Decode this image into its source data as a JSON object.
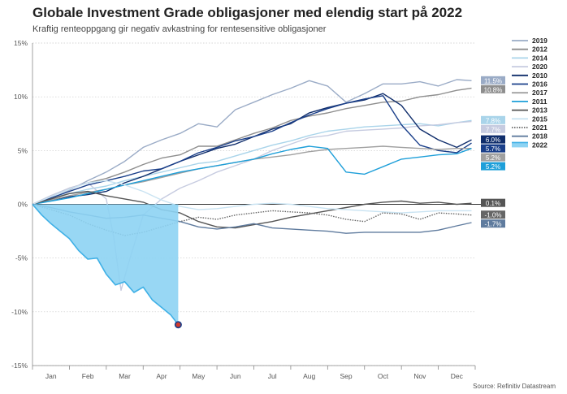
{
  "title": "Globale Investment Grade obligasjoner med elendig start på 2022",
  "subtitle": "Kraftig renteoppgang gir negativ avkastning for rentesensitive obligasjoner",
  "source": "Source: Refinitiv Datastream",
  "chart_data": {
    "type": "line",
    "ylim": [
      -15,
      15
    ],
    "y_ticks": [
      15,
      10,
      5,
      0,
      -5,
      -10,
      -15
    ],
    "y_tick_labels": [
      "15%",
      "10%",
      "5%",
      "0%",
      "-5%",
      "-10%",
      "-15%"
    ],
    "x_range": [
      0,
      12
    ],
    "x_tick_labels": [
      "Jan",
      "Feb",
      "Mar",
      "Apr",
      "May",
      "Jun",
      "Jul",
      "Aug",
      "Sep",
      "Oct",
      "Nov",
      "Dec"
    ],
    "grid": true,
    "legend_position": "right",
    "series": [
      {
        "name": "2019",
        "color": "#9aabc6",
        "end_label": "11.5%",
        "x": [
          0,
          0.5,
          1,
          1.5,
          2,
          2.5,
          3,
          3.5,
          4,
          4.5,
          5,
          5.5,
          6,
          6.5,
          7,
          7.5,
          8,
          8.5,
          9,
          9.5,
          10,
          10.5,
          11,
          11.5,
          11.9
        ],
        "y": [
          0,
          0.5,
          1.3,
          2.2,
          3.0,
          4.0,
          5.3,
          6.0,
          6.6,
          7.5,
          7.2,
          8.8,
          9.5,
          10.2,
          10.8,
          11.5,
          11.0,
          9.5,
          10.3,
          11.2,
          11.2,
          11.4,
          11.0,
          11.6,
          11.5
        ]
      },
      {
        "name": "2012",
        "color": "#8e8e8e",
        "end_label": "10.8%",
        "x": [
          0,
          0.5,
          1,
          1.5,
          2,
          2.5,
          3,
          3.5,
          4,
          4.5,
          5,
          5.5,
          6,
          6.5,
          7,
          7.5,
          8,
          8.5,
          9,
          9.5,
          10,
          10.5,
          11,
          11.5,
          11.9
        ],
        "y": [
          0,
          0.8,
          1.5,
          2.0,
          2.4,
          3.0,
          3.7,
          4.3,
          4.6,
          5.4,
          5.4,
          6.0,
          6.6,
          7.1,
          7.8,
          8.2,
          8.5,
          8.9,
          9.2,
          9.5,
          9.6,
          10.0,
          10.2,
          10.6,
          10.8
        ]
      },
      {
        "name": "2014",
        "color": "#a9d4ea",
        "end_label": "7.8%",
        "x": [
          0,
          0.5,
          1,
          1.5,
          2,
          2.5,
          3,
          3.5,
          4,
          4.5,
          5,
          5.5,
          6,
          6.5,
          7,
          7.5,
          8,
          8.5,
          9,
          9.5,
          10,
          10.5,
          11,
          11.5,
          11.9
        ],
        "y": [
          0,
          0.6,
          1.0,
          1.4,
          1.7,
          2.2,
          2.6,
          3.0,
          3.4,
          3.8,
          4.0,
          4.5,
          5.0,
          5.5,
          5.9,
          6.4,
          6.8,
          7.0,
          7.2,
          7.3,
          7.4,
          7.5,
          7.3,
          7.6,
          7.8
        ]
      },
      {
        "name": "2020",
        "color": "#c6cbe0",
        "end_label": "7.7%",
        "x": [
          0,
          0.5,
          1,
          1.5,
          2,
          2.2,
          2.4,
          2.6,
          3,
          3.5,
          4,
          4.5,
          5,
          5.5,
          6,
          6.5,
          7,
          7.5,
          8,
          8.5,
          9,
          9.5,
          10,
          10.5,
          11,
          11.5,
          11.9
        ],
        "y": [
          0,
          0.8,
          1.5,
          2.0,
          0.5,
          -3.0,
          -8.0,
          -5.5,
          -1.0,
          0.5,
          1.5,
          2.2,
          3.0,
          3.6,
          4.2,
          5.0,
          5.6,
          6.2,
          6.4,
          6.8,
          6.9,
          7.0,
          7.1,
          7.3,
          7.4,
          7.6,
          7.7
        ]
      },
      {
        "name": "2010",
        "color": "#0f2d6b",
        "end_label": "6.0%",
        "x": [
          0,
          0.5,
          1,
          1.5,
          2,
          2.5,
          3,
          3.5,
          4,
          4.5,
          5,
          5.5,
          6,
          6.5,
          7,
          7.5,
          8,
          8.5,
          9,
          9.5,
          10,
          10.5,
          11,
          11.5,
          11.9
        ],
        "y": [
          0,
          0.4,
          0.7,
          0.9,
          1.2,
          2.0,
          2.6,
          3.3,
          4.0,
          4.6,
          5.2,
          5.6,
          6.3,
          7.0,
          7.5,
          8.5,
          9.0,
          9.4,
          9.7,
          10.3,
          9.2,
          7.0,
          6.0,
          5.3,
          6.0
        ]
      },
      {
        "name": "2016",
        "color": "#1a3f8a",
        "end_label": "5.7%",
        "x": [
          0,
          0.5,
          1,
          1.5,
          2,
          2.5,
          3,
          3.5,
          4,
          4.5,
          5,
          5.5,
          6,
          6.5,
          7,
          7.5,
          8,
          8.5,
          9,
          9.5,
          10,
          10.5,
          11,
          11.5,
          11.9
        ],
        "y": [
          0,
          0.6,
          1.2,
          1.8,
          2.2,
          2.6,
          3.1,
          3.3,
          4.0,
          4.8,
          5.3,
          5.9,
          6.3,
          6.8,
          7.6,
          8.3,
          8.9,
          9.4,
          9.8,
          10.1,
          7.4,
          5.5,
          5.0,
          4.8,
          5.7
        ]
      },
      {
        "name": "2017",
        "color": "#a0a0a0",
        "end_label": "5.2%",
        "x": [
          0,
          0.5,
          1,
          1.5,
          2,
          2.5,
          3,
          3.5,
          4,
          4.5,
          5,
          5.5,
          6,
          6.5,
          7,
          7.5,
          8,
          8.5,
          9,
          9.5,
          10,
          10.5,
          11,
          11.5,
          11.9
        ],
        "y": [
          0,
          0.4,
          0.8,
          1.1,
          1.4,
          1.8,
          2.1,
          2.5,
          2.9,
          3.3,
          3.6,
          3.9,
          4.2,
          4.4,
          4.6,
          4.9,
          5.1,
          5.2,
          5.3,
          5.4,
          5.3,
          5.2,
          5.1,
          5.2,
          5.2
        ]
      },
      {
        "name": "2011",
        "color": "#1e9fd9",
        "end_label": "5.2%",
        "x": [
          0,
          0.5,
          1,
          1.5,
          2,
          2.5,
          3,
          3.5,
          4,
          4.5,
          5,
          5.5,
          6,
          6.5,
          7,
          7.5,
          8,
          8.5,
          9,
          9.5,
          10,
          10.5,
          11,
          11.5,
          11.9
        ],
        "y": [
          0,
          0.3,
          0.6,
          1.0,
          1.4,
          1.8,
          2.2,
          2.6,
          3.0,
          3.3,
          3.6,
          3.9,
          4.2,
          4.7,
          5.1,
          5.4,
          5.2,
          3.0,
          2.8,
          3.5,
          4.2,
          4.4,
          4.6,
          4.7,
          5.2
        ]
      },
      {
        "name": "2013",
        "color": "#555555",
        "end_label": "0.1%",
        "x": [
          0,
          0.5,
          1,
          1.5,
          2,
          2.5,
          3,
          3.5,
          4,
          4.5,
          5,
          5.5,
          6,
          6.5,
          7,
          7.5,
          8,
          8.5,
          9,
          9.5,
          10,
          10.5,
          11,
          11.5,
          11.9
        ],
        "y": [
          0,
          0.5,
          1.0,
          1.2,
          0.8,
          0.5,
          0.2,
          -0.5,
          -0.8,
          -1.6,
          -2.1,
          -2.2,
          -1.9,
          -1.6,
          -1.2,
          -0.9,
          -0.6,
          -0.3,
          0.0,
          0.2,
          0.3,
          0.1,
          0.2,
          0.0,
          0.1
        ]
      },
      {
        "name": "2015",
        "color": "#c9e3f2",
        "end_label": "",
        "x": [
          0,
          0.5,
          1,
          1.5,
          2,
          2.5,
          3,
          3.5,
          4,
          4.5,
          5,
          5.5,
          6,
          6.5,
          7,
          7.5,
          8,
          8.5,
          9,
          9.5,
          10,
          10.5,
          11,
          11.5,
          11.9
        ],
        "y": [
          0,
          0.7,
          1.4,
          2.0,
          2.2,
          1.8,
          1.2,
          0.4,
          -0.2,
          -0.5,
          -0.4,
          -0.2,
          0.0,
          0.1,
          0.0,
          -0.2,
          -0.4,
          -0.5,
          -0.6,
          -0.7,
          -0.8,
          -0.7,
          -0.6,
          -0.6,
          -0.6
        ]
      },
      {
        "name": "2021",
        "color": "#666666",
        "dashed": true,
        "end_label": "-1.0%",
        "x": [
          0,
          0.5,
          1,
          1.5,
          2,
          2.5,
          3,
          3.5,
          4,
          4.5,
          5,
          5.5,
          6,
          6.5,
          7,
          7.5,
          8,
          8.5,
          9,
          9.5,
          10,
          10.5,
          11,
          11.5,
          11.9
        ],
        "y": [
          0,
          -0.5,
          -1.0,
          -1.8,
          -2.4,
          -2.9,
          -2.6,
          -2.1,
          -1.6,
          -1.2,
          -1.4,
          -1.0,
          -0.8,
          -0.6,
          -0.7,
          -0.8,
          -1.0,
          -1.4,
          -1.6,
          -0.8,
          -0.9,
          -1.4,
          -0.8,
          -0.9,
          -1.0
        ]
      },
      {
        "name": "2018",
        "color": "#5f7b9e",
        "end_label": "-1.7%",
        "x": [
          0,
          0.5,
          1,
          1.5,
          2,
          2.5,
          3,
          3.5,
          4,
          4.5,
          5,
          5.5,
          6,
          6.5,
          7,
          7.5,
          8,
          8.5,
          9,
          9.5,
          10,
          10.5,
          11,
          11.5,
          11.9
        ],
        "y": [
          0,
          -0.3,
          -0.7,
          -1.0,
          -1.3,
          -1.2,
          -1.0,
          -1.3,
          -1.6,
          -2.1,
          -2.3,
          -2.1,
          -1.8,
          -2.2,
          -2.3,
          -2.4,
          -2.5,
          -2.7,
          -2.6,
          -2.6,
          -2.6,
          -2.6,
          -2.4,
          -2.0,
          -1.7
        ]
      },
      {
        "name": "2022",
        "color": "#3fb0e6",
        "fill": "#8dd3f3",
        "area": true,
        "end_label": "",
        "end_marker": true,
        "x": [
          0,
          0.25,
          0.5,
          0.75,
          1,
          1.25,
          1.5,
          1.75,
          2,
          2.25,
          2.5,
          2.75,
          3,
          3.25,
          3.5,
          3.75,
          3.95
        ],
        "y": [
          0,
          -1.0,
          -1.8,
          -2.5,
          -3.2,
          -4.3,
          -5.1,
          -5.0,
          -6.5,
          -7.5,
          -7.2,
          -8.2,
          -7.7,
          -8.9,
          -9.6,
          -10.3,
          -11.2
        ]
      }
    ]
  }
}
